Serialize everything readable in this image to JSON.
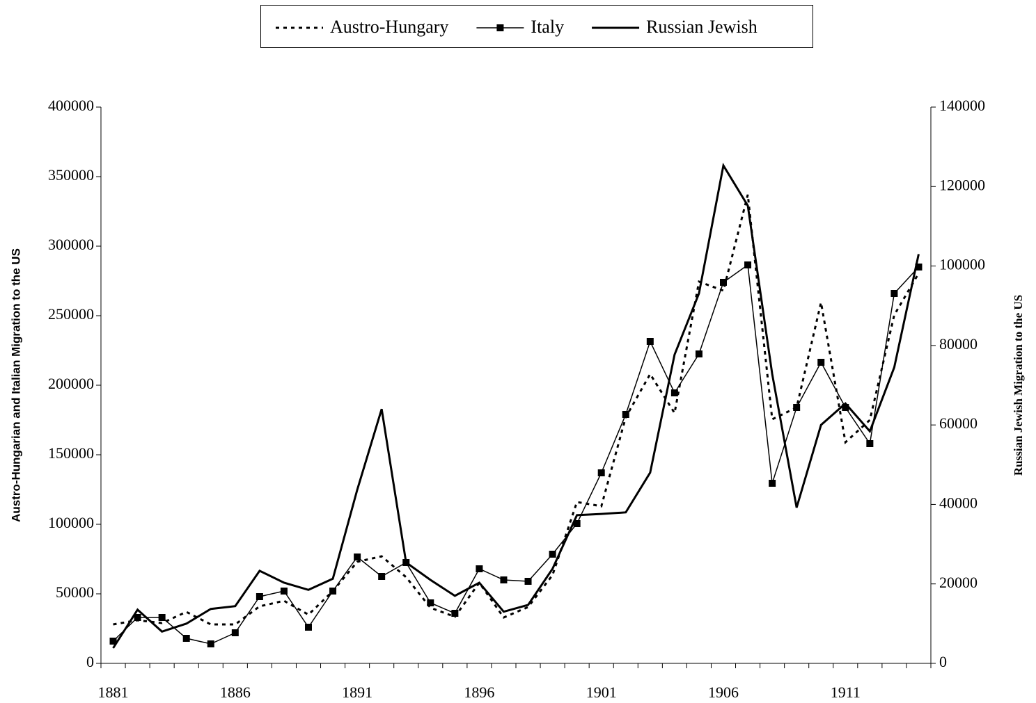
{
  "chart_data": {
    "type": "line",
    "categories": [
      "1881",
      null,
      null,
      null,
      null,
      "1886",
      null,
      null,
      null,
      null,
      "1891",
      null,
      null,
      null,
      null,
      "1896",
      null,
      null,
      null,
      null,
      "1901",
      null,
      null,
      null,
      null,
      "1906",
      null,
      null,
      null,
      null,
      "1911",
      null,
      null,
      null
    ],
    "y_label": "Austro-Hungarian and Italian Migration to the US",
    "y2_label": "Russian Jewish Migration to the US",
    "ylim": [
      0,
      400000
    ],
    "yticks": [
      0,
      50000,
      100000,
      150000,
      200000,
      250000,
      300000,
      350000,
      400000
    ],
    "y2lim": [
      0,
      140000
    ],
    "y2ticks": [
      0,
      20000,
      40000,
      60000,
      80000,
      100000,
      120000,
      140000
    ],
    "legend": "top",
    "series": [
      {
        "name": "Austro-Hungary",
        "color": "#000000",
        "dash": "dotted",
        "values": [
          28000,
          31000,
          29000,
          37000,
          28000,
          28000,
          41000,
          45000,
          35000,
          52000,
          73000,
          77000,
          62000,
          40000,
          33500,
          58000,
          33000,
          40500,
          63500,
          116000,
          113000,
          177000,
          208000,
          180000,
          274500,
          268000,
          337000,
          175500,
          184000,
          259500,
          159000,
          175000,
          250500,
          280500
        ]
      },
      {
        "name": "Italy",
        "color": "#000000",
        "marker": "square",
        "values": [
          16000,
          33000,
          33000,
          18000,
          14000,
          22000,
          48000,
          52000,
          26000,
          52000,
          76500,
          62500,
          72500,
          43500,
          36000,
          68000,
          60000,
          59000,
          78500,
          100500,
          137000,
          179000,
          231500,
          194500,
          222500,
          274000,
          286500,
          129500,
          184000,
          216500,
          184000,
          158000,
          266000,
          285000
        ]
      },
      {
        "name": "Russian Jewish",
        "color": "#000000",
        "axis": "y2",
        "values": [
          3850,
          13500,
          8000,
          10000,
          13700,
          14400,
          23300,
          20300,
          18500,
          21300,
          43700,
          64000,
          25400,
          21000,
          17000,
          20300,
          13000,
          14700,
          23800,
          37300,
          37600,
          38000,
          48000,
          77700,
          93100,
          125300,
          115200,
          72800,
          39200,
          60000,
          65400,
          58400,
          74500,
          103000
        ]
      }
    ]
  }
}
